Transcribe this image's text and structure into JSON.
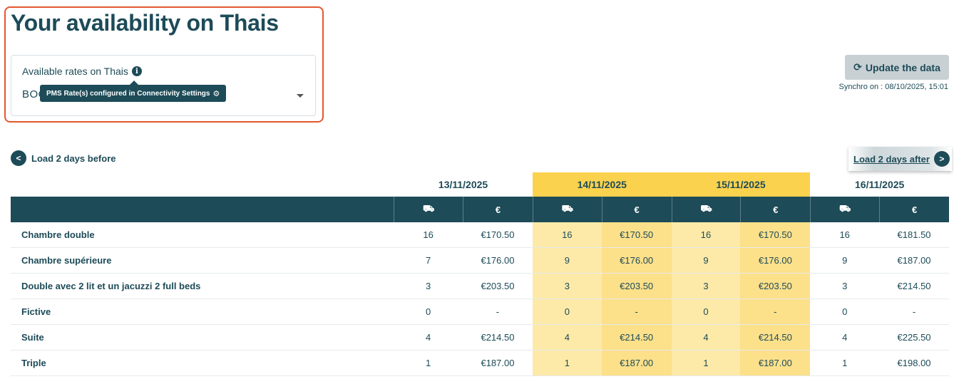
{
  "page": {
    "title": "Your availability on Thais"
  },
  "rates": {
    "label": "Available rates on Thais",
    "info_icon": "info-circle-icon",
    "selected_value": "BOO",
    "tooltip": "PMS Rate(s) configured in Connectivity Settings"
  },
  "update": {
    "label": "Update the data",
    "synchro": "Synchro on : 08/10/2025, 15:01"
  },
  "navigation": {
    "load_before": "Load 2 days before",
    "load_after": "Load 2 days after"
  },
  "colors": {
    "primary": "#1d4b58",
    "highlight": "#fbd24e",
    "highlight_light": "#fdeaa8",
    "highlight_mid": "#fce08a",
    "frame": "#e4572e"
  },
  "table": {
    "dates": [
      {
        "label": "13/11/2025",
        "highlighted": false
      },
      {
        "label": "14/11/2025",
        "highlighted": true
      },
      {
        "label": "15/11/2025",
        "highlighted": true
      },
      {
        "label": "16/11/2025",
        "highlighted": false
      }
    ],
    "columns": {
      "rooms_icon": "bed-icon",
      "price_symbol": "€"
    },
    "rows": [
      {
        "name": "Chambre double",
        "cells": [
          "16",
          "€170.50",
          "16",
          "€170.50",
          "16",
          "€170.50",
          "16",
          "€181.50"
        ]
      },
      {
        "name": "Chambre supérieure",
        "cells": [
          "7",
          "€176.00",
          "9",
          "€176.00",
          "9",
          "€176.00",
          "9",
          "€187.00"
        ]
      },
      {
        "name": "Double avec 2 lit et un jacuzzi 2 full beds",
        "cells": [
          "3",
          "€203.50",
          "3",
          "€203.50",
          "3",
          "€203.50",
          "3",
          "€214.50"
        ]
      },
      {
        "name": "Fictive",
        "cells": [
          "0",
          "-",
          "0",
          "-",
          "0",
          "-",
          "0",
          "-"
        ]
      },
      {
        "name": "Suite",
        "cells": [
          "4",
          "€214.50",
          "4",
          "€214.50",
          "4",
          "€214.50",
          "4",
          "€225.50"
        ]
      },
      {
        "name": "Triple",
        "cells": [
          "1",
          "€187.00",
          "1",
          "€187.00",
          "1",
          "€187.00",
          "1",
          "€198.00"
        ]
      }
    ]
  }
}
